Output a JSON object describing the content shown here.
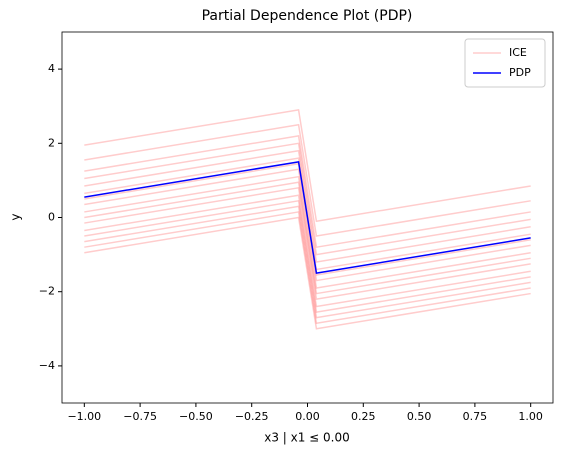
{
  "chart_data": {
    "type": "line",
    "title": "Partial Dependence Plot (PDP)",
    "x_label": "x3 | x1 ≤ 0.00",
    "y_label": "y",
    "x": [
      -1,
      -0.04,
      0.04,
      1
    ],
    "ice": {
      "name": "ICE",
      "color": "#ff0000",
      "opacity": 0.2,
      "lines": [
        [
          -0.95,
          0,
          -3,
          -2.05
        ],
        [
          -0.8,
          0.15,
          -2.85,
          -1.9
        ],
        [
          -0.65,
          0.3,
          -2.7,
          -1.75
        ],
        [
          -0.5,
          0.45,
          -2.55,
          -1.6
        ],
        [
          -0.35,
          0.6,
          -2.4,
          -1.45
        ],
        [
          -0.15,
          0.8,
          -2.2,
          -1.25
        ],
        [
          0,
          0.95,
          -2.05,
          -1.1
        ],
        [
          0.15,
          1.1,
          -1.9,
          -0.95
        ],
        [
          0.35,
          1.3,
          -1.7,
          -0.75
        ],
        [
          0.5,
          1.45,
          -1.55,
          -0.6
        ],
        [
          0.65,
          1.6,
          -1.4,
          -0.45
        ],
        [
          0.85,
          1.8,
          -1.2,
          -0.25
        ],
        [
          1.05,
          2,
          -1,
          -0.05
        ],
        [
          1.25,
          2.2,
          -0.8,
          0.15
        ],
        [
          1.55,
          2.5,
          -0.5,
          0.45
        ],
        [
          1.95,
          2.9,
          -0.1,
          0.85
        ]
      ]
    },
    "series": [
      {
        "name": "PDP",
        "color": "#0000ff",
        "values": [
          0.55,
          1.5,
          -1.5,
          -0.55
        ]
      }
    ],
    "xlim": [
      -1.1,
      1.1
    ],
    "xticks": [
      {
        "value": -1,
        "label": "−1.00"
      },
      {
        "value": -0.75,
        "label": "−0.75"
      },
      {
        "value": -0.5,
        "label": "−0.50"
      },
      {
        "value": -0.25,
        "label": "−0.25"
      },
      {
        "value": 0,
        "label": "0.00"
      },
      {
        "value": 0.25,
        "label": "0.25"
      },
      {
        "value": 0.5,
        "label": "0.50"
      },
      {
        "value": 0.75,
        "label": "0.75"
      },
      {
        "value": 1,
        "label": "1.00"
      }
    ],
    "ylim": [
      -5,
      5
    ],
    "yticks": [
      {
        "value": -4,
        "label": "−4"
      },
      {
        "value": -2,
        "label": "−2"
      },
      0,
      2,
      4
    ],
    "legend": "upper right"
  }
}
